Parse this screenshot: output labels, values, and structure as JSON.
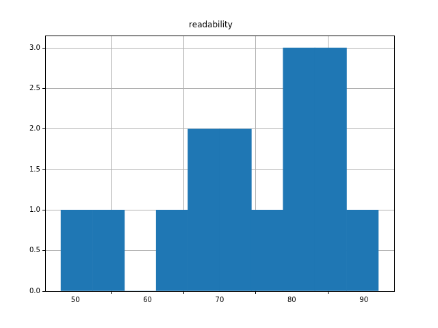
{
  "chart_data": {
    "type": "histogram",
    "title": "readability",
    "bins": [
      48,
      52.4,
      56.8,
      61.2,
      65.6,
      70,
      74.4,
      78.8,
      83.2,
      87.6,
      92
    ],
    "values": [
      1,
      1,
      0,
      1,
      2,
      2,
      1,
      3,
      3,
      1
    ],
    "color": "#1f77b4",
    "xlim": [
      45.8,
      94.2
    ],
    "xticks": [
      50,
      60,
      70,
      80,
      90
    ],
    "ylim": [
      0,
      3.15
    ],
    "yticks": [
      {
        "value": 0,
        "label": "0.0"
      },
      0.5,
      {
        "value": 1,
        "label": "1.0"
      },
      1.5,
      {
        "value": 2,
        "label": "2.0"
      },
      2.5,
      {
        "value": 3,
        "label": "3.0"
      }
    ],
    "grid": true
  }
}
